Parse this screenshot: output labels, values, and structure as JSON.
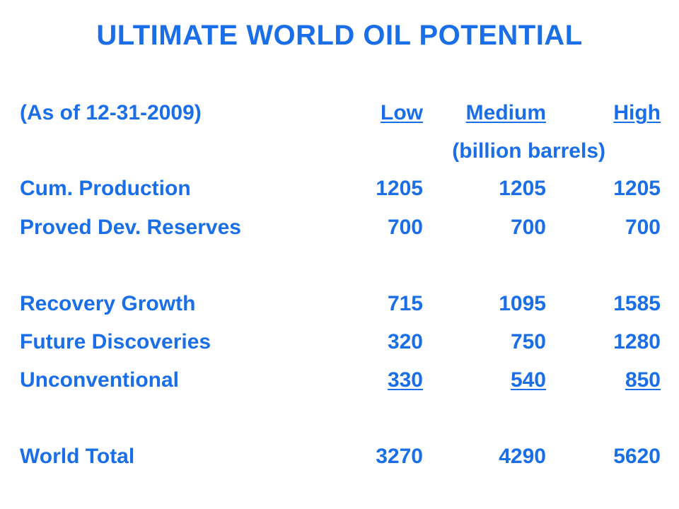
{
  "title": "ULTIMATE WORLD OIL POTENTIAL",
  "header": {
    "as_of": "(As of 12-31-2009)",
    "columns": [
      "Low",
      "Medium",
      "High"
    ],
    "units": "(billion barrels)"
  },
  "rows": [
    {
      "label": "Cum. Production",
      "low": "1205",
      "medium": "1205",
      "high": "1205"
    },
    {
      "label": "Proved Dev. Reserves",
      "low": "700",
      "medium": "700",
      "high": "700"
    },
    {
      "label": "Recovery Growth",
      "low": "715",
      "medium": "1095",
      "high": "1585"
    },
    {
      "label": "Future Discoveries",
      "low": "320",
      "medium": "750",
      "high": "1280"
    },
    {
      "label": "Unconventional",
      "low": "330",
      "medium": "540",
      "high": "850"
    }
  ],
  "total": {
    "label": "World Total",
    "low": "3270",
    "medium": "4290",
    "high": "5620"
  },
  "colors": {
    "text": "#1a6ee8",
    "background": "#ffffff"
  }
}
